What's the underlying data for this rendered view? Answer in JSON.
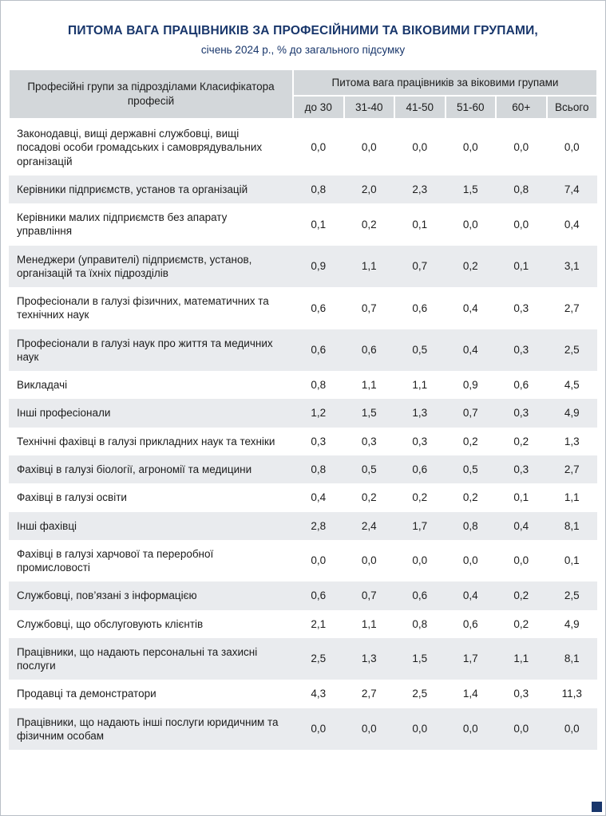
{
  "header": {
    "title": "ПИТОМА ВАГА ПРАЦІВНИКІВ ЗА ПРОФЕСІЙНИМИ ТА ВІКОВИМИ ГРУПАМИ,",
    "subtitle": "січень 2024 р., % до загального підсумку"
  },
  "table": {
    "left_header": "Професійні групи за підрозділами Класифікатора професій",
    "group_header": "Питома вага працівників за віковими групами",
    "columns": [
      "до 30",
      "31-40",
      "41-50",
      "51-60",
      "60+",
      "Всього"
    ],
    "rows": [
      {
        "label": "Законодавці, вищі державні службовці, вищі посадові особи громадських і самоврядувальних організацій",
        "values": [
          "0,0",
          "0,0",
          "0,0",
          "0,0",
          "0,0",
          "0,0"
        ]
      },
      {
        "label": "Керівники підприємств, установ та організацій",
        "values": [
          "0,8",
          "2,0",
          "2,3",
          "1,5",
          "0,8",
          "7,4"
        ]
      },
      {
        "label": "Керівники малих підприємств без апарату управління",
        "values": [
          "0,1",
          "0,2",
          "0,1",
          "0,0",
          "0,0",
          "0,4"
        ]
      },
      {
        "label": "Менеджери (управителі) підприємств, установ, організацій та їхніх підрозділів",
        "values": [
          "0,9",
          "1,1",
          "0,7",
          "0,2",
          "0,1",
          "3,1"
        ]
      },
      {
        "label": "Професіонали в галузі фізичних, математичних та технічних наук",
        "values": [
          "0,6",
          "0,7",
          "0,6",
          "0,4",
          "0,3",
          "2,7"
        ]
      },
      {
        "label": "Професіонали в галузі наук про життя та медичних наук",
        "values": [
          "0,6",
          "0,6",
          "0,5",
          "0,4",
          "0,3",
          "2,5"
        ]
      },
      {
        "label": "Викладачі",
        "values": [
          "0,8",
          "1,1",
          "1,1",
          "0,9",
          "0,6",
          "4,5"
        ]
      },
      {
        "label": "Інші професіонали",
        "values": [
          "1,2",
          "1,5",
          "1,3",
          "0,7",
          "0,3",
          "4,9"
        ]
      },
      {
        "label": "Технічні фахівці в галузі прикладних наук та техніки",
        "values": [
          "0,3",
          "0,3",
          "0,3",
          "0,2",
          "0,2",
          "1,3"
        ]
      },
      {
        "label": "Фахівці в галузі біології, агрономії та медицини",
        "values": [
          "0,8",
          "0,5",
          "0,6",
          "0,5",
          "0,3",
          "2,7"
        ]
      },
      {
        "label": "Фахівці в галузі освіти",
        "values": [
          "0,4",
          "0,2",
          "0,2",
          "0,2",
          "0,1",
          "1,1"
        ]
      },
      {
        "label": "Інші фахівці",
        "values": [
          "2,8",
          "2,4",
          "1,7",
          "0,8",
          "0,4",
          "8,1"
        ]
      },
      {
        "label": "Фахівці в галузі харчової та переробної промисловості",
        "values": [
          "0,0",
          "0,0",
          "0,0",
          "0,0",
          "0,0",
          "0,1"
        ]
      },
      {
        "label": "Службовці, пов’язані з інформацією",
        "values": [
          "0,6",
          "0,7",
          "0,6",
          "0,4",
          "0,2",
          "2,5"
        ]
      },
      {
        "label": "Службовці, що обслуговують клієнтів",
        "values": [
          "2,1",
          "1,1",
          "0,8",
          "0,6",
          "0,2",
          "4,9"
        ]
      },
      {
        "label": "Працівники, що надають персональні та захисні послуги",
        "values": [
          "2,5",
          "1,3",
          "1,5",
          "1,7",
          "1,1",
          "8,1"
        ]
      },
      {
        "label": "Продавці та демонстратори",
        "values": [
          "4,3",
          "2,7",
          "2,5",
          "1,4",
          "0,3",
          "11,3"
        ]
      },
      {
        "label": "Працівники, що надають інші послуги юридичним та фізичним особам",
        "values": [
          "0,0",
          "0,0",
          "0,0",
          "0,0",
          "0,0",
          "0,0"
        ]
      }
    ]
  },
  "colors": {
    "accent_navy": "#18366b",
    "header_bg": "#d3d7da",
    "row_alt_bg": "#e9ebee",
    "text": "#1c1c1c"
  }
}
